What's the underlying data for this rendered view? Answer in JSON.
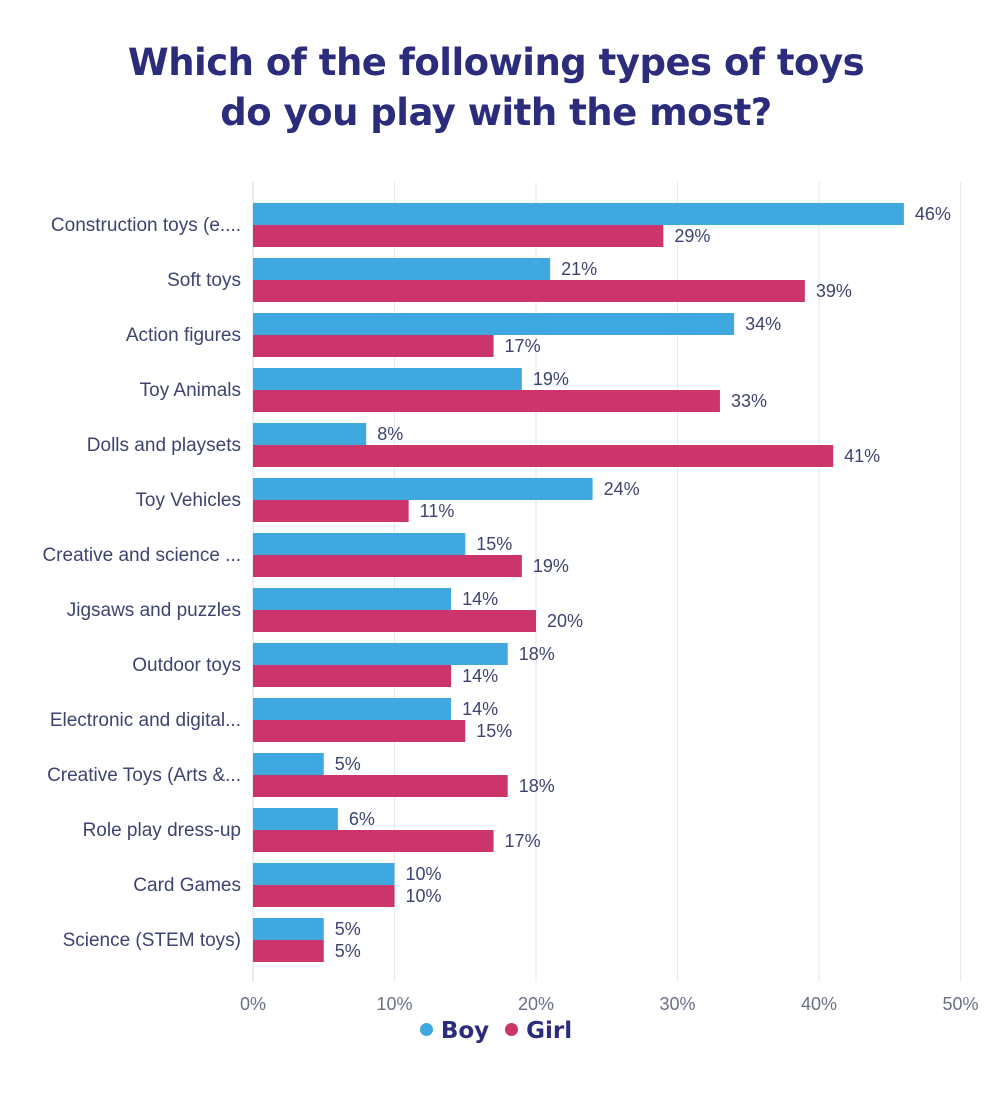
{
  "title": {
    "line1": "Which of the following types of toys",
    "line2": "do you play with the most?"
  },
  "colors": {
    "boy": "#3fa9df",
    "girl": "#cc356b",
    "title": "#2b2d7c",
    "grid": "#e6e6ec"
  },
  "legend": [
    {
      "name": "Boy",
      "color": "#3fa9df"
    },
    {
      "name": "Girl",
      "color": "#cc356b"
    }
  ],
  "chart_data": {
    "type": "bar",
    "orientation": "horizontal",
    "title": "Which of the following types of toys do you play with the most?",
    "categories": [
      "Construction toys (e....",
      "Soft toys",
      "Action figures",
      "Toy Animals",
      "Dolls and playsets",
      "Toy Vehicles",
      "Creative and science ...",
      "Jigsaws and puzzles",
      "Outdoor toys",
      "Electronic and digital...",
      "Creative Toys (Arts &...",
      "Role play dress-up",
      "Card Games",
      "Science (STEM toys)"
    ],
    "series": [
      {
        "name": "Boy",
        "values": [
          46,
          21,
          34,
          19,
          8,
          24,
          15,
          14,
          18,
          14,
          5,
          6,
          10,
          5
        ]
      },
      {
        "name": "Girl",
        "values": [
          29,
          39,
          17,
          33,
          41,
          11,
          19,
          20,
          14,
          15,
          18,
          17,
          10,
          5
        ]
      }
    ],
    "value_suffix": "%",
    "xlim": [
      0,
      50
    ],
    "xticks": [
      "0%",
      "10%",
      "20%",
      "30%",
      "40%",
      "50%"
    ],
    "grid": true,
    "legend_position": "bottom"
  }
}
